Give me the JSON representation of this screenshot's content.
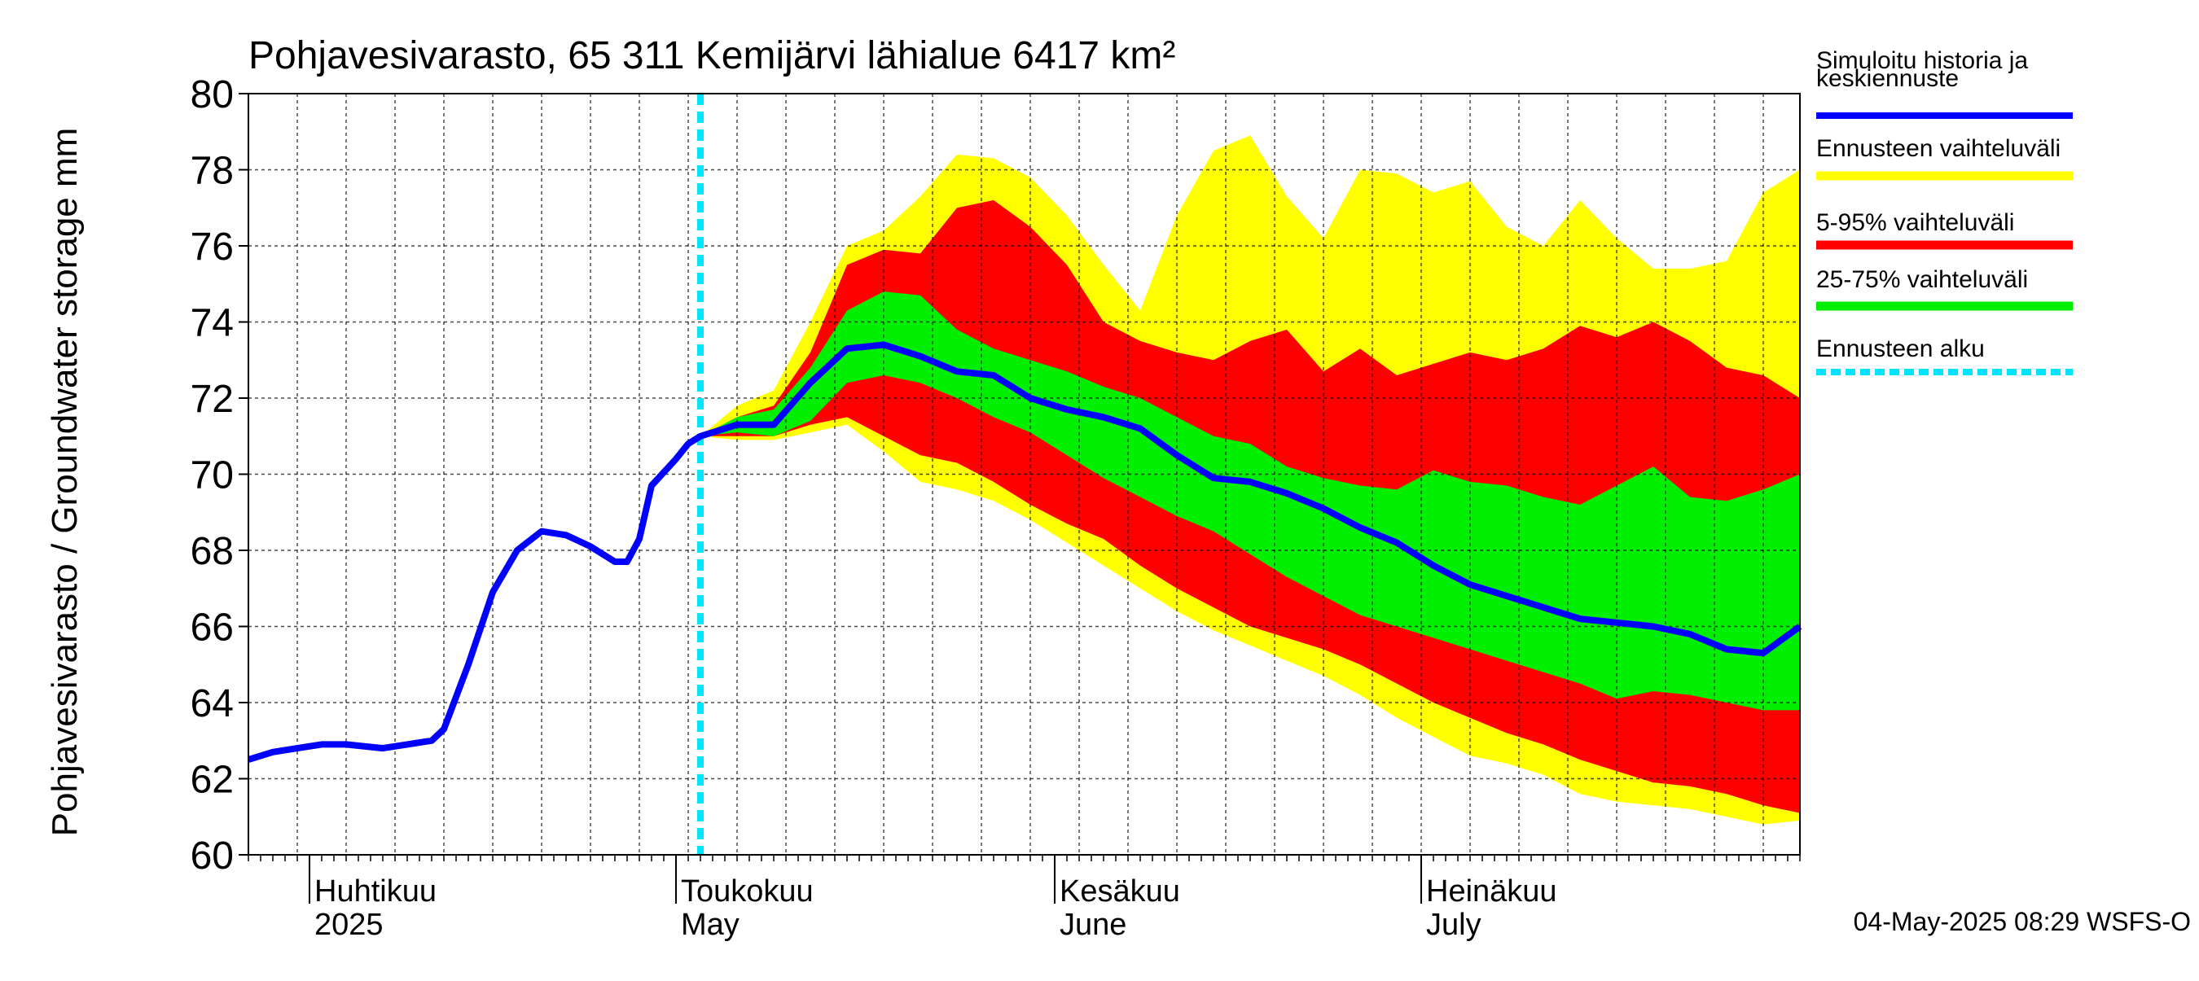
{
  "chart_data": {
    "type": "area",
    "title": "Pohjavesivarasto, 65 311 Kemijärvi lähialue 6417 km²",
    "ylabel": "Pohjavesivarasto / Groundwater storage   mm",
    "ylim": [
      60,
      80
    ],
    "yticks": [
      60,
      62,
      64,
      66,
      68,
      70,
      72,
      74,
      76,
      78,
      80
    ],
    "xlim": [
      "2025-03-27",
      "2025-08-01"
    ],
    "month_labels": [
      {
        "fi": "Huhtikuu",
        "en": "2025",
        "date": "2025-04-01"
      },
      {
        "fi": "Toukokuu",
        "en": "May",
        "date": "2025-05-01"
      },
      {
        "fi": "Kesäkuu",
        "en": "June",
        "date": "2025-06-01"
      },
      {
        "fi": "Heinäkuu",
        "en": "July",
        "date": "2025-07-01"
      }
    ],
    "forecast_start": "2025-05-03",
    "legend": [
      {
        "label": "Simuloitu historia ja keskiennuste",
        "color": "#0000ff",
        "style": "solid"
      },
      {
        "label": "Ennusteen vaihteluväli",
        "color": "#ffff00",
        "style": "band"
      },
      {
        "label": "5-95% vaihteluväli",
        "color": "#ff0000",
        "style": "band"
      },
      {
        "label": "25-75% vaihteluväli",
        "color": "#00ee00",
        "style": "band"
      },
      {
        "label": "Ennusteen alku",
        "color": "#00e5ff",
        "style": "dashed"
      }
    ],
    "legend_position": "right",
    "footer": "04-May-2025 08:29 WSFS-O",
    "grid": true,
    "history": {
      "x": [
        "2025-03-27",
        "2025-03-29",
        "2025-03-31",
        "2025-04-02",
        "2025-04-04",
        "2025-04-07",
        "2025-04-09",
        "2025-04-10",
        "2025-04-11",
        "2025-04-12",
        "2025-04-14",
        "2025-04-16",
        "2025-04-18",
        "2025-04-20",
        "2025-04-22",
        "2025-04-24",
        "2025-04-26",
        "2025-04-27",
        "2025-04-28",
        "2025-04-29",
        "2025-05-01",
        "2025-05-02",
        "2025-05-03"
      ],
      "y": [
        62.5,
        62.7,
        62.8,
        62.9,
        62.9,
        62.8,
        62.9,
        62.95,
        63.0,
        63.3,
        65.0,
        66.9,
        68.0,
        68.5,
        68.4,
        68.1,
        67.7,
        67.7,
        68.3,
        69.7,
        70.4,
        70.8,
        71.0
      ]
    },
    "forecast": {
      "x": [
        "2025-05-03",
        "2025-05-06",
        "2025-05-09",
        "2025-05-12",
        "2025-05-15",
        "2025-05-18",
        "2025-05-21",
        "2025-05-24",
        "2025-05-27",
        "2025-05-30",
        "2025-06-02",
        "2025-06-05",
        "2025-06-08",
        "2025-06-11",
        "2025-06-14",
        "2025-06-17",
        "2025-06-20",
        "2025-06-23",
        "2025-06-26",
        "2025-06-29",
        "2025-07-02",
        "2025-07-05",
        "2025-07-08",
        "2025-07-11",
        "2025-07-14",
        "2025-07-17",
        "2025-07-20",
        "2025-07-23",
        "2025-07-26",
        "2025-07-29",
        "2025-08-01"
      ],
      "median": [
        71.0,
        71.3,
        71.3,
        72.4,
        73.3,
        73.4,
        73.1,
        72.7,
        72.6,
        72.0,
        71.7,
        71.5,
        71.2,
        70.5,
        69.9,
        69.8,
        69.5,
        69.1,
        68.6,
        68.2,
        67.6,
        67.1,
        66.8,
        66.5,
        66.2,
        66.1,
        66.0,
        65.8,
        65.4,
        65.3,
        66.0
      ],
      "p25": [
        71.0,
        71.1,
        71.0,
        71.4,
        72.4,
        72.6,
        72.4,
        72.0,
        71.5,
        71.1,
        70.5,
        69.9,
        69.4,
        68.9,
        68.5,
        67.9,
        67.3,
        66.8,
        66.3,
        66.0,
        65.7,
        65.4,
        65.1,
        64.8,
        64.5,
        64.1,
        64.3,
        64.2,
        64.0,
        63.8,
        63.8
      ],
      "p75": [
        71.0,
        71.5,
        71.7,
        72.8,
        74.3,
        74.8,
        74.7,
        73.8,
        73.3,
        73.0,
        72.7,
        72.3,
        72.0,
        71.5,
        71.0,
        70.8,
        70.2,
        69.9,
        69.7,
        69.6,
        70.1,
        69.8,
        69.7,
        69.4,
        69.2,
        69.7,
        70.2,
        69.4,
        69.3,
        69.6,
        70.0
      ],
      "p5": [
        71.0,
        71.0,
        71.0,
        71.3,
        71.5,
        71.0,
        70.5,
        70.3,
        69.8,
        69.2,
        68.7,
        68.3,
        67.6,
        67.0,
        66.5,
        66.0,
        65.7,
        65.4,
        65.0,
        64.5,
        64.0,
        63.6,
        63.2,
        62.9,
        62.5,
        62.2,
        61.9,
        61.8,
        61.6,
        61.3,
        61.1
      ],
      "p95": [
        71.0,
        71.5,
        71.8,
        73.2,
        75.5,
        75.9,
        75.8,
        77.0,
        77.2,
        76.5,
        75.5,
        74.0,
        73.5,
        73.2,
        73.0,
        73.5,
        73.8,
        72.7,
        73.3,
        72.6,
        72.9,
        73.2,
        73.0,
        73.3,
        73.9,
        73.6,
        74.0,
        73.5,
        72.8,
        72.6,
        72.0
      ],
      "min": [
        71.0,
        70.9,
        70.9,
        71.1,
        71.3,
        70.6,
        69.8,
        69.6,
        69.3,
        68.8,
        68.2,
        67.6,
        67.0,
        66.4,
        65.9,
        65.5,
        65.1,
        64.7,
        64.2,
        63.6,
        63.1,
        62.6,
        62.4,
        62.1,
        61.6,
        61.4,
        61.3,
        61.2,
        61.0,
        60.8,
        60.9
      ],
      "max": [
        71.0,
        71.8,
        72.2,
        74.0,
        76.0,
        76.4,
        77.3,
        78.4,
        78.3,
        77.8,
        76.8,
        75.5,
        74.3,
        76.8,
        78.5,
        78.9,
        77.3,
        76.2,
        78.0,
        77.9,
        77.4,
        77.7,
        76.5,
        76.0,
        77.2,
        76.2,
        75.4,
        75.4,
        75.6,
        77.4,
        78.0
      ]
    }
  }
}
